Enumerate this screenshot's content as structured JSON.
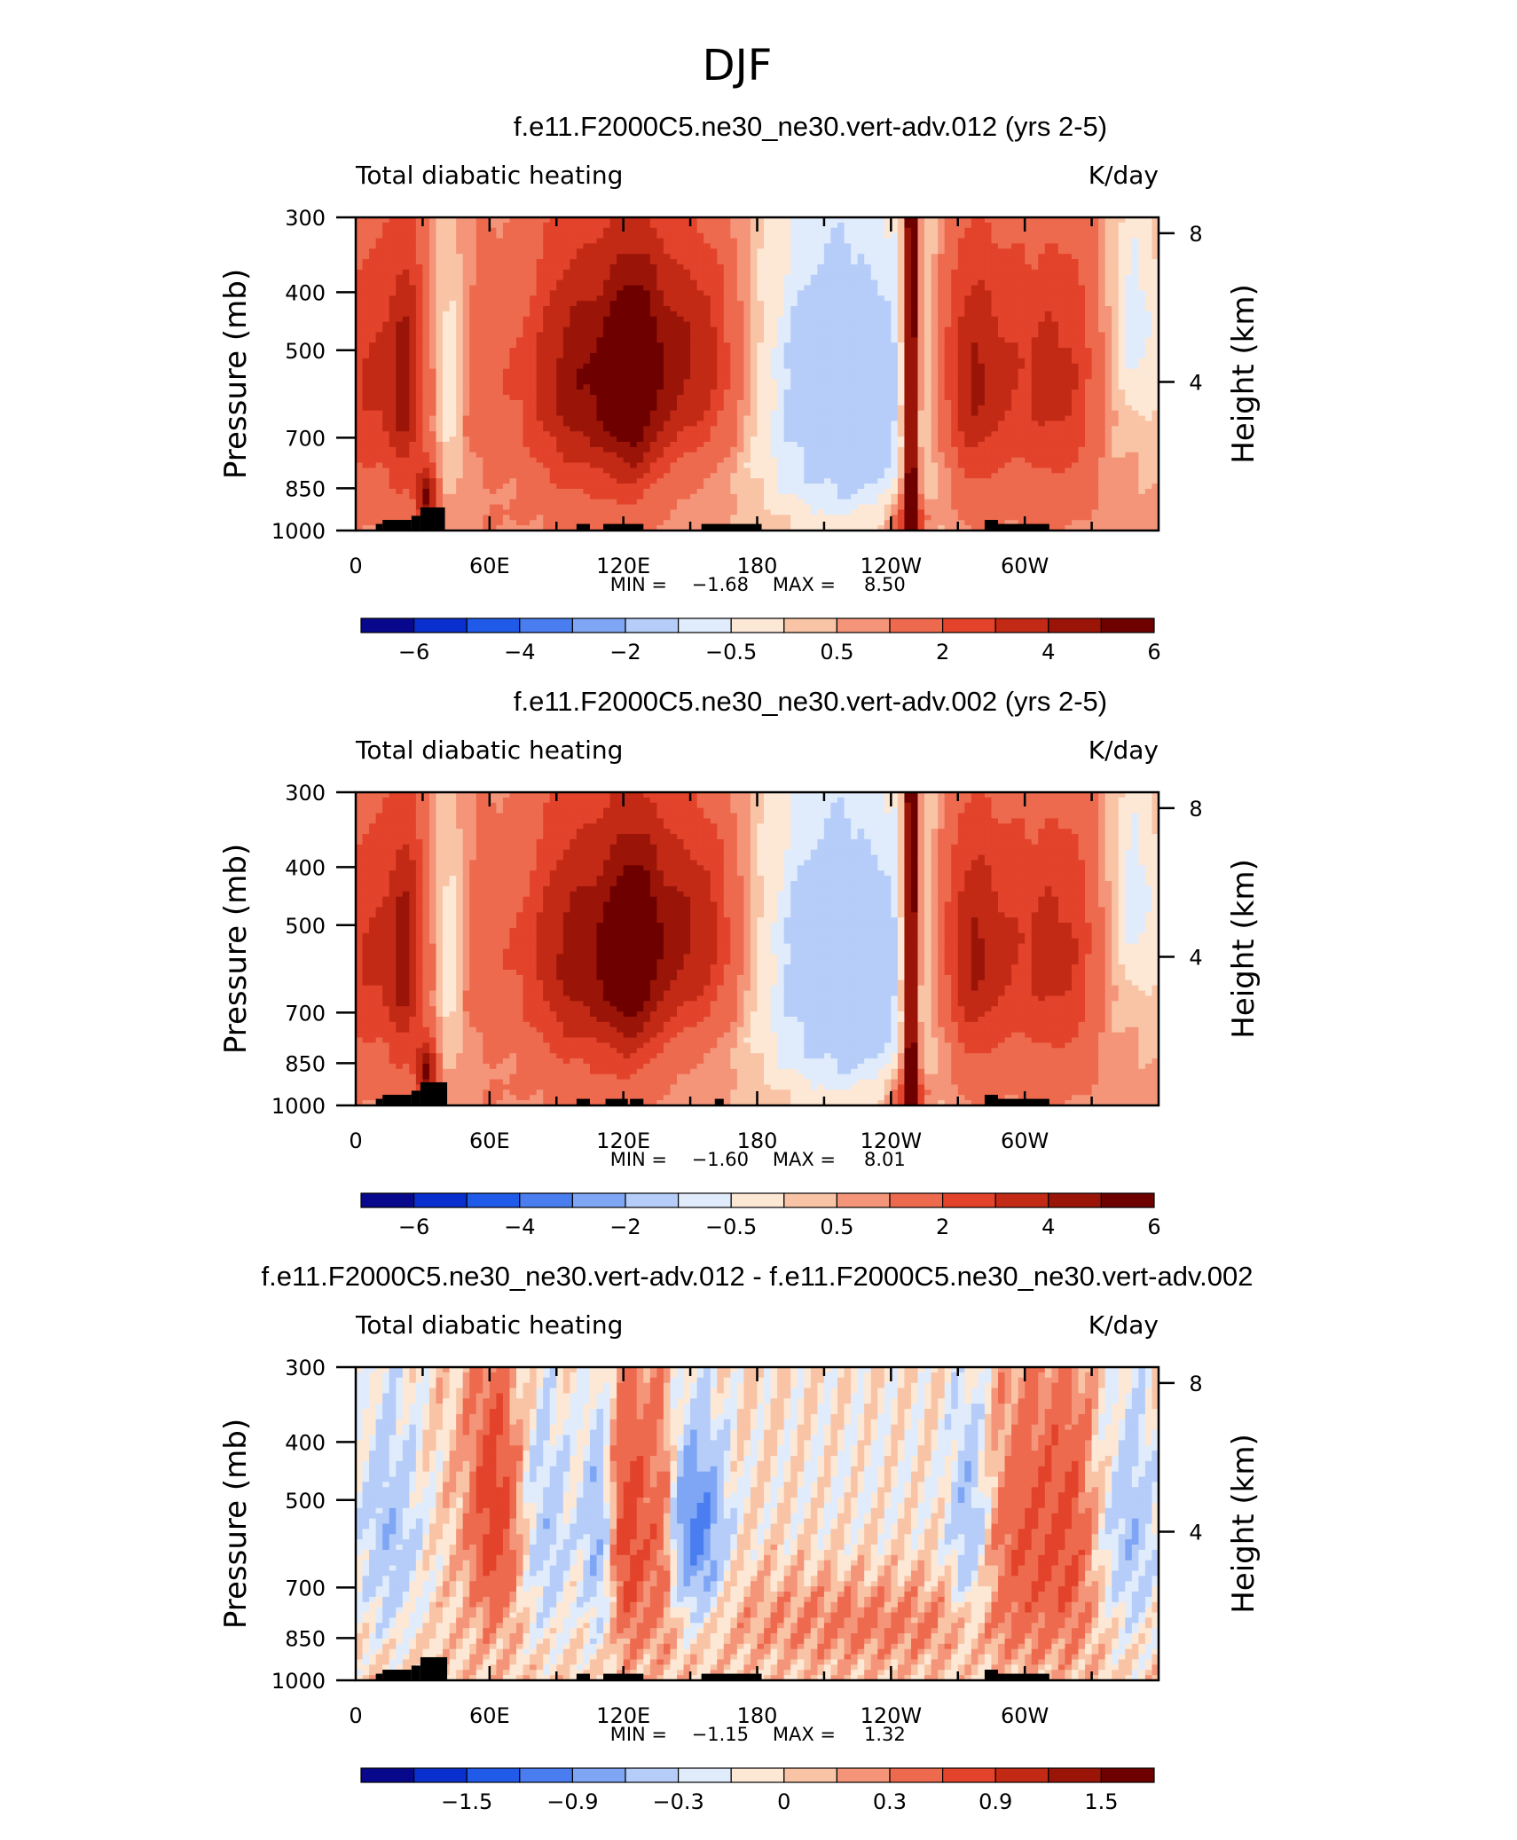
{
  "figure_title": "DJF",
  "colors": {
    "ramp_blue_to_red": [
      "#08088c",
      "#0a2fcf",
      "#1f5ae8",
      "#4a7ef0",
      "#7fa6f5",
      "#b5cdf8",
      "#e0ebfb",
      "#fde8d6",
      "#f9c4a5",
      "#f4957a",
      "#ee6a4e",
      "#e2432a",
      "#c22a16",
      "#9a1508",
      "#6e0000"
    ],
    "topography": "#000000"
  },
  "chart_data": [
    {
      "type": "heatmap",
      "title": "f.e11.F2000C5.ne30_ne30.vert-adv.012 (yrs 2-5)",
      "left_label": "Total diabatic heating",
      "right_label": "K/day",
      "ylabel": "Pressure (mb)",
      "y2label": "Height (km)",
      "y_ticks": [
        "300",
        "400",
        "500",
        "700",
        "850",
        "1000"
      ],
      "y_tick_values": [
        300,
        400,
        500,
        700,
        850,
        1000
      ],
      "y2_ticks": [
        "8",
        "4"
      ],
      "y2_tick_values": [
        8,
        4
      ],
      "x_ticks": [
        "0",
        "60E",
        "120E",
        "180",
        "120W",
        "60W"
      ],
      "x_tick_values": [
        0,
        60,
        120,
        180,
        240,
        300
      ],
      "xlim": [
        0,
        360
      ],
      "ylim": [
        1000,
        300
      ],
      "min_label": "MIN =",
      "min_value": "−1.68",
      "max_label": "MAX =",
      "max_value": "8.50",
      "colorbar_levels": [
        -7,
        -6,
        -5,
        -4,
        -3,
        -2,
        -1,
        -0.5,
        0,
        0.5,
        1,
        2,
        3,
        4,
        5,
        6,
        7
      ],
      "colorbar_labels": [
        "−6",
        "−4",
        "−2",
        "−0.5",
        "0.5",
        "2",
        "4",
        "6"
      ],
      "colorbar_label_values": [
        -6,
        -4,
        -2,
        -0.5,
        0.5,
        2,
        4,
        6
      ]
    },
    {
      "type": "heatmap",
      "title": "f.e11.F2000C5.ne30_ne30.vert-adv.002 (yrs 2-5)",
      "left_label": "Total diabatic heating",
      "right_label": "K/day",
      "ylabel": "Pressure (mb)",
      "y2label": "Height (km)",
      "y_ticks": [
        "300",
        "400",
        "500",
        "700",
        "850",
        "1000"
      ],
      "y_tick_values": [
        300,
        400,
        500,
        700,
        850,
        1000
      ],
      "y2_ticks": [
        "8",
        "4"
      ],
      "y2_tick_values": [
        8,
        4
      ],
      "x_ticks": [
        "0",
        "60E",
        "120E",
        "180",
        "120W",
        "60W"
      ],
      "x_tick_values": [
        0,
        60,
        120,
        180,
        240,
        300
      ],
      "xlim": [
        0,
        360
      ],
      "ylim": [
        1000,
        300
      ],
      "min_label": "MIN =",
      "min_value": "−1.60",
      "max_label": "MAX =",
      "max_value": "8.01",
      "colorbar_levels": [
        -7,
        -6,
        -5,
        -4,
        -3,
        -2,
        -1,
        -0.5,
        0,
        0.5,
        1,
        2,
        3,
        4,
        5,
        6,
        7
      ],
      "colorbar_labels": [
        "−6",
        "−4",
        "−2",
        "−0.5",
        "0.5",
        "2",
        "4",
        "6"
      ],
      "colorbar_label_values": [
        -6,
        -4,
        -2,
        -0.5,
        0.5,
        2,
        4,
        6
      ]
    },
    {
      "type": "heatmap",
      "title": "f.e11.F2000C5.ne30_ne30.vert-adv.012 - f.e11.F2000C5.ne30_ne30.vert-adv.002",
      "left_label": "Total diabatic heating",
      "right_label": "K/day",
      "ylabel": "Pressure (mb)",
      "y2label": "Height (km)",
      "y_ticks": [
        "300",
        "400",
        "500",
        "700",
        "850",
        "1000"
      ],
      "y_tick_values": [
        300,
        400,
        500,
        700,
        850,
        1000
      ],
      "y2_ticks": [
        "8",
        "4"
      ],
      "y2_tick_values": [
        8,
        4
      ],
      "x_ticks": [
        "0",
        "60E",
        "120E",
        "180",
        "120W",
        "60W"
      ],
      "x_tick_values": [
        0,
        60,
        120,
        180,
        240,
        300
      ],
      "xlim": [
        0,
        360
      ],
      "ylim": [
        1000,
        300
      ],
      "min_label": "MIN =",
      "min_value": "−1.15",
      "max_label": "MAX =",
      "max_value": "1.32",
      "colorbar_levels": [
        -2.1,
        -1.8,
        -1.5,
        -1.2,
        -0.9,
        -0.6,
        -0.3,
        -0.15,
        0,
        0.15,
        0.3,
        0.6,
        0.9,
        1.2,
        1.5,
        1.8,
        2.1
      ],
      "colorbar_labels": [
        "−1.5",
        "−0.9",
        "−0.3",
        "0",
        "0.3",
        "0.9",
        "1.5"
      ],
      "colorbar_label_values": [
        -1.5,
        -0.9,
        -0.3,
        0,
        0.3,
        0.9,
        1.5
      ]
    }
  ]
}
